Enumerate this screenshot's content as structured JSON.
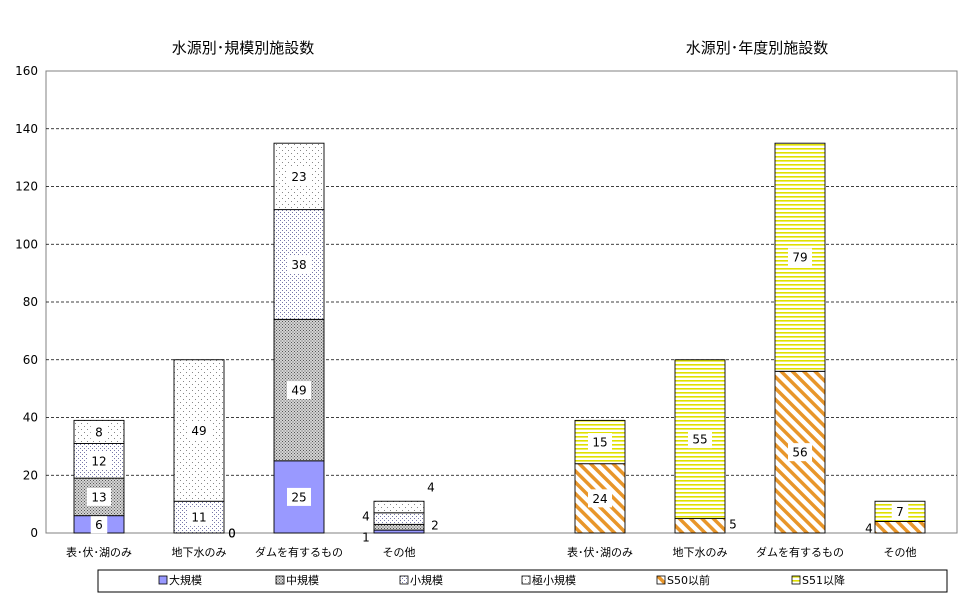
{
  "colors": {
    "large": "#9999ff",
    "medium": "#808080",
    "small": "#aaaacc",
    "tiny": "#999999",
    "pre_s50": "#e8962a",
    "post_s51": "#e6e600"
  },
  "chart_data": {
    "type": "bar",
    "stacked": true,
    "ylim": [
      0,
      160
    ],
    "yticks": [
      0,
      20,
      40,
      60,
      80,
      100,
      120,
      140,
      160
    ],
    "grid": true,
    "legend_placement": "bottom",
    "panels": [
      {
        "title": "水源別･規模別施設数",
        "categories": [
          "表･伏･湖のみ",
          "地下水のみ",
          "ダムを有するもの",
          "その他"
        ],
        "series": [
          {
            "name": "大規模",
            "values": [
              6,
              0,
              25,
              1
            ]
          },
          {
            "name": "中規模",
            "values": [
              13,
              0,
              49,
              2
            ]
          },
          {
            "name": "小規模",
            "values": [
              12,
              11,
              38,
              4
            ]
          },
          {
            "name": "極小規模",
            "values": [
              8,
              49,
              23,
              4
            ]
          }
        ]
      },
      {
        "title": "水源別･年度別施設数",
        "categories": [
          "表･伏･湖のみ",
          "地下水のみ",
          "ダムを有するもの",
          "その他"
        ],
        "series": [
          {
            "name": "S50以前",
            "values": [
              24,
              5,
              56,
              4
            ]
          },
          {
            "name": "S51以降",
            "values": [
              15,
              55,
              79,
              7
            ]
          }
        ]
      }
    ],
    "legend": [
      "大規模",
      "中規模",
      "小規模",
      "極小規模",
      "S50以前",
      "S51以降"
    ]
  }
}
